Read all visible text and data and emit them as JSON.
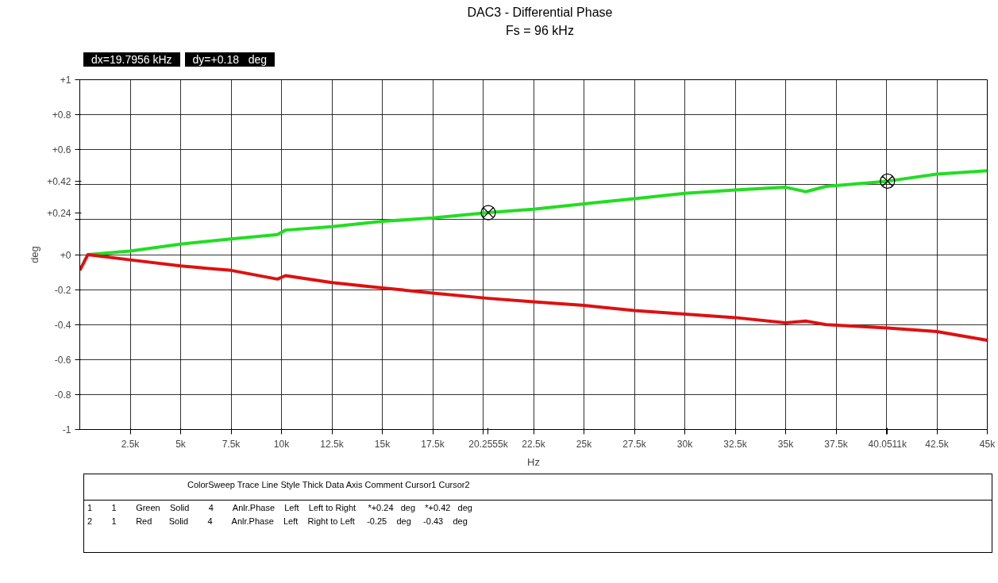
{
  "chart_data": {
    "type": "line",
    "title": "DAC3 - Differential Phase",
    "subtitle": "Fs = 96 kHz",
    "xlabel": "Hz",
    "ylabel": "deg",
    "xlim": [
      0,
      45000
    ],
    "ylim": [
      -1,
      1
    ],
    "xticks": [
      {
        "value": 2500,
        "label": "2.5k"
      },
      {
        "value": 5000,
        "label": "5k"
      },
      {
        "value": 7500,
        "label": "7.5k"
      },
      {
        "value": 10000,
        "label": "10k"
      },
      {
        "value": 12500,
        "label": "12.5k"
      },
      {
        "value": 15000,
        "label": "15k"
      },
      {
        "value": 17500,
        "label": "17.5k"
      },
      {
        "value": 20000,
        "label": null
      },
      {
        "value": 20255.5,
        "label": "20.2555k"
      },
      {
        "value": 22500,
        "label": "22.5k"
      },
      {
        "value": 25000,
        "label": "25k"
      },
      {
        "value": 27500,
        "label": "27.5k"
      },
      {
        "value": 30000,
        "label": "30k"
      },
      {
        "value": 32500,
        "label": "32.5k"
      },
      {
        "value": 35000,
        "label": "35k"
      },
      {
        "value": 37500,
        "label": "37.5k"
      },
      {
        "value": 40000,
        "label": null
      },
      {
        "value": 40051.1,
        "label": "40.0511k"
      },
      {
        "value": 42500,
        "label": "42.5k"
      },
      {
        "value": 45000,
        "label": "45k"
      }
    ],
    "yticks": [
      {
        "value": 1,
        "label": "+1"
      },
      {
        "value": 0.8,
        "label": "+0.8"
      },
      {
        "value": 0.6,
        "label": "+0.6"
      },
      {
        "value": 0.42,
        "label": "+0.42"
      },
      {
        "value": 0.4,
        "label": null
      },
      {
        "value": 0.24,
        "label": "+0.24"
      },
      {
        "value": 0.2,
        "label": null
      },
      {
        "value": 0,
        "label": "+0"
      },
      -0.2,
      -0.4,
      -0.6,
      -0.8,
      -1
    ],
    "grid": true,
    "line_style": "solid",
    "series": [
      {
        "color": "#22dd22",
        "x": [
          400,
          2500,
          5000,
          7500,
          9800,
          10200,
          12500,
          15000,
          17500,
          20255.5,
          22500,
          25000,
          27500,
          30000,
          32500,
          35000,
          36000,
          37000,
          40051.1,
          42500,
          45000
        ],
        "values": [
          0,
          0.02,
          0.06,
          0.09,
          0.115,
          0.14,
          0.16,
          0.19,
          0.21,
          0.24,
          0.26,
          0.29,
          0.32,
          0.35,
          0.37,
          0.385,
          0.36,
          0.39,
          0.42,
          0.46,
          0.48
        ]
      },
      {
        "color": "#dd1111",
        "x": [
          0,
          400,
          2500,
          5000,
          7500,
          9800,
          10200,
          12500,
          15000,
          17500,
          20255.5,
          22500,
          25000,
          27500,
          30000,
          32500,
          35000,
          36000,
          37000,
          40051.1,
          42500,
          45000
        ],
        "values": [
          -0.09,
          0,
          -0.03,
          -0.065,
          -0.09,
          -0.14,
          -0.12,
          -0.16,
          -0.19,
          -0.22,
          -0.25,
          -0.27,
          -0.29,
          -0.32,
          -0.34,
          -0.36,
          -0.39,
          -0.38,
          -0.4,
          -0.42,
          -0.44,
          -0.49
        ]
      },
      {
        "type": "scatter",
        "marker": "cross",
        "color": "#000000",
        "x": [
          20255.5,
          40051.1
        ],
        "values": [
          0.24,
          0.42
        ]
      }
    ],
    "annotations": [
      "dx=19.7956 kHz",
      "dy=+0.18   deg",
      "ColorSweep Trace Line Style Thick Data Axis Comment Cursor1 Cursor2",
      "1        1        Green    Solid        4        Anlr.Phase    Left    Left to Right     *+0.24   deg    *+0.42   deg",
      "2        1        Red       Solid        4        Anlr.Phase    Left    Right to Left     -0.25    deg     -0.43    deg"
    ]
  }
}
